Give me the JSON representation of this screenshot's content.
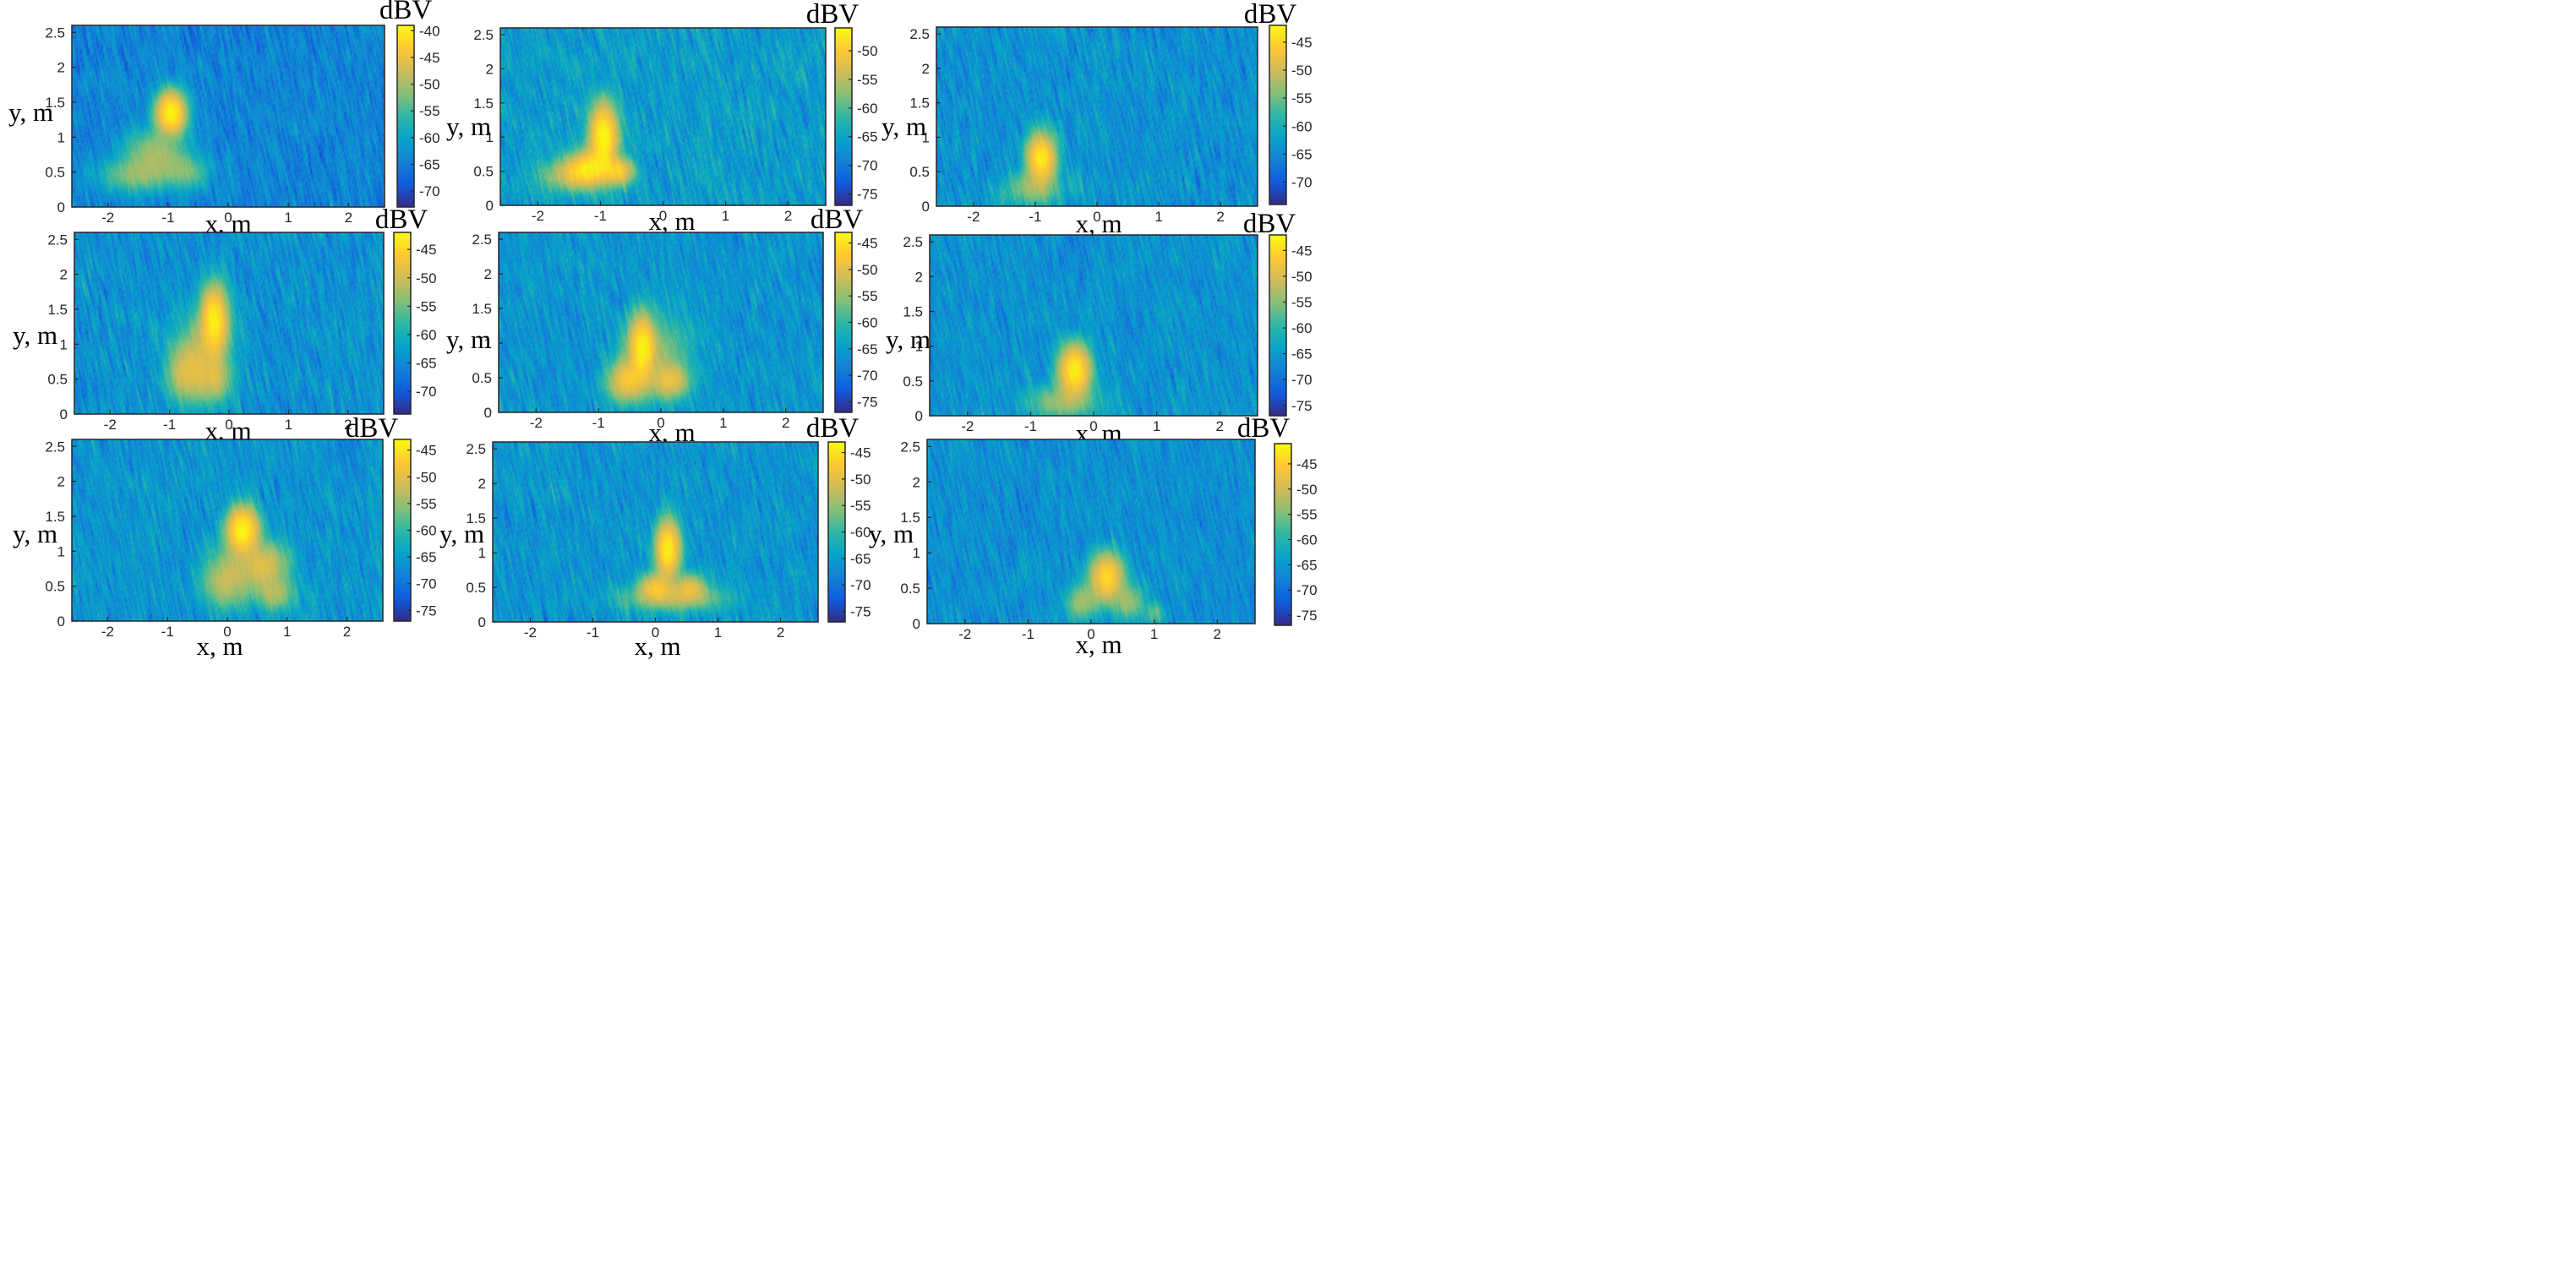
{
  "figure": {
    "background": "#ffffff",
    "colormap": "parula",
    "colormap_stops": [
      "#352a87",
      "#0f5cdd",
      "#1481d6",
      "#06a4ca",
      "#2eb7a4",
      "#87bf77",
      "#d1bb59",
      "#fec832",
      "#f9fb0e"
    ]
  },
  "chart_data": [
    {
      "type": "heatmap",
      "panel": "row1-col1",
      "xlabel": "x, m",
      "ylabel": "y, m",
      "colorbar_label": "dBV",
      "xlim": [
        -2.6,
        2.6
      ],
      "ylim": [
        0,
        2.6
      ],
      "xticks": [
        -2,
        -1,
        0,
        1,
        2
      ],
      "yticks": [
        0,
        0.5,
        1,
        1.5,
        2,
        2.5
      ],
      "clim": [
        -73,
        -39
      ],
      "cticks": [
        -40,
        -45,
        -50,
        -55,
        -60,
        -65,
        -70
      ],
      "background_level": -64,
      "hotspots": [
        {
          "x": -0.95,
          "y": 1.35,
          "sx": 0.15,
          "sy": 0.18,
          "peak": -40
        },
        {
          "x": -1.2,
          "y": 0.75,
          "sx": 0.3,
          "sy": 0.22,
          "peak": -52
        },
        {
          "x": -1.6,
          "y": 0.45,
          "sx": 0.35,
          "sy": 0.15,
          "peak": -55
        },
        {
          "x": -0.7,
          "y": 0.5,
          "sx": 0.25,
          "sy": 0.15,
          "peak": -56
        }
      ]
    },
    {
      "type": "heatmap",
      "panel": "row1-col2",
      "xlabel": "x, m",
      "ylabel": "y, m",
      "colorbar_label": "dBV",
      "xlim": [
        -2.6,
        2.6
      ],
      "ylim": [
        0,
        2.6
      ],
      "xticks": [
        -2,
        -1,
        0,
        1,
        2
      ],
      "yticks": [
        0,
        0.5,
        1,
        1.5,
        2,
        2.5
      ],
      "clim": [
        -77,
        -46
      ],
      "cticks": [
        -50,
        -55,
        -60,
        -65,
        -70,
        -75
      ],
      "background_level": -66,
      "hotspots": [
        {
          "x": -0.95,
          "y": 1.0,
          "sx": 0.14,
          "sy": 0.3,
          "peak": -47
        },
        {
          "x": -1.2,
          "y": 0.55,
          "sx": 0.2,
          "sy": 0.15,
          "peak": -51
        },
        {
          "x": -0.7,
          "y": 0.5,
          "sx": 0.15,
          "sy": 0.12,
          "peak": -52
        },
        {
          "x": -1.45,
          "y": 0.45,
          "sx": 0.3,
          "sy": 0.15,
          "peak": -56
        }
      ]
    },
    {
      "type": "heatmap",
      "panel": "row1-col3",
      "xlabel": "x, m",
      "ylabel": "y, m",
      "colorbar_label": "dBV",
      "xlim": [
        -2.6,
        2.6
      ],
      "ylim": [
        0,
        2.6
      ],
      "xticks": [
        -2,
        -1,
        0,
        1,
        2
      ],
      "yticks": [
        0,
        0.5,
        1,
        1.5,
        2,
        2.5
      ],
      "clim": [
        -74,
        -42
      ],
      "cticks": [
        -45,
        -50,
        -55,
        -60,
        -65,
        -70
      ],
      "background_level": -64,
      "hotspots": [
        {
          "x": -0.9,
          "y": 0.7,
          "sx": 0.14,
          "sy": 0.22,
          "peak": -44
        },
        {
          "x": -1.05,
          "y": 0.25,
          "sx": 0.3,
          "sy": 0.15,
          "peak": -57
        }
      ]
    },
    {
      "type": "heatmap",
      "panel": "row2-col1",
      "xlabel": "x, m",
      "ylabel": "y, m",
      "colorbar_label": "dBV",
      "xlim": [
        -2.6,
        2.6
      ],
      "ylim": [
        0,
        2.6
      ],
      "xticks": [
        -2,
        -1,
        0,
        1,
        2
      ],
      "yticks": [
        0,
        0.5,
        1,
        1.5,
        2,
        2.5
      ],
      "clim": [
        -74,
        -42
      ],
      "cticks": [
        -45,
        -50,
        -55,
        -60,
        -65,
        -70
      ],
      "background_level": -64,
      "hotspots": [
        {
          "x": -0.25,
          "y": 1.35,
          "sx": 0.14,
          "sy": 0.3,
          "peak": -44
        },
        {
          "x": -0.7,
          "y": 0.55,
          "sx": 0.2,
          "sy": 0.25,
          "peak": -52
        },
        {
          "x": -0.25,
          "y": 0.5,
          "sx": 0.18,
          "sy": 0.2,
          "peak": -53
        },
        {
          "x": -0.5,
          "y": 0.9,
          "sx": 0.3,
          "sy": 0.3,
          "peak": -56
        }
      ]
    },
    {
      "type": "heatmap",
      "panel": "row2-col2",
      "xlabel": "x, m",
      "ylabel": "y, m",
      "colorbar_label": "dBV",
      "xlim": [
        -2.6,
        2.6
      ],
      "ylim": [
        0,
        2.6
      ],
      "xticks": [
        -2,
        -1,
        0,
        1,
        2
      ],
      "yticks": [
        0,
        0.5,
        1,
        1.5,
        2,
        2.5
      ],
      "clim": [
        -77,
        -43
      ],
      "cticks": [
        -45,
        -50,
        -55,
        -60,
        -65,
        -70,
        -75
      ],
      "background_level": -66,
      "hotspots": [
        {
          "x": -0.3,
          "y": 0.95,
          "sx": 0.12,
          "sy": 0.28,
          "peak": -46
        },
        {
          "x": -0.55,
          "y": 0.45,
          "sx": 0.18,
          "sy": 0.18,
          "peak": -50
        },
        {
          "x": 0.15,
          "y": 0.45,
          "sx": 0.18,
          "sy": 0.15,
          "peak": -52
        },
        {
          "x": -0.1,
          "y": 0.8,
          "sx": 0.35,
          "sy": 0.35,
          "peak": -58
        }
      ]
    },
    {
      "type": "heatmap",
      "panel": "row2-col3",
      "xlabel": "x, m",
      "ylabel": "y, m",
      "colorbar_label": "dBV",
      "xlim": [
        -2.6,
        2.6
      ],
      "ylim": [
        0,
        2.6
      ],
      "xticks": [
        -2,
        -1,
        0,
        1,
        2
      ],
      "yticks": [
        0,
        0.5,
        1,
        1.5,
        2,
        2.5
      ],
      "clim": [
        -77,
        -42
      ],
      "cticks": [
        -45,
        -50,
        -55,
        -60,
        -65,
        -70,
        -75
      ],
      "background_level": -66,
      "hotspots": [
        {
          "x": -0.3,
          "y": 0.65,
          "sx": 0.15,
          "sy": 0.22,
          "peak": -44
        },
        {
          "x": -0.5,
          "y": 0.2,
          "sx": 0.35,
          "sy": 0.15,
          "peak": -57
        }
      ]
    },
    {
      "type": "heatmap",
      "panel": "row3-col1",
      "xlabel": "x, m",
      "ylabel": "y, m",
      "colorbar_label": "dBV",
      "xlim": [
        -2.6,
        2.6
      ],
      "ylim": [
        0,
        2.6
      ],
      "xticks": [
        -2,
        -1,
        0,
        1,
        2
      ],
      "yticks": [
        0,
        0.5,
        1,
        1.5,
        2,
        2.5
      ],
      "clim": [
        -77,
        -43
      ],
      "cticks": [
        -45,
        -50,
        -55,
        -60,
        -65,
        -70,
        -75
      ],
      "background_level": -66,
      "hotspots": [
        {
          "x": 0.25,
          "y": 1.3,
          "sx": 0.16,
          "sy": 0.2,
          "peak": -44
        },
        {
          "x": 0.6,
          "y": 0.8,
          "sx": 0.25,
          "sy": 0.2,
          "peak": -52
        },
        {
          "x": 0.0,
          "y": 0.6,
          "sx": 0.25,
          "sy": 0.25,
          "peak": -54
        },
        {
          "x": 0.8,
          "y": 0.4,
          "sx": 0.2,
          "sy": 0.15,
          "peak": -56
        }
      ]
    },
    {
      "type": "heatmap",
      "panel": "row3-col2",
      "xlabel": "x, m",
      "ylabel": "y, m",
      "colorbar_label": "dBV",
      "xlim": [
        -2.6,
        2.6
      ],
      "ylim": [
        0,
        2.6
      ],
      "xticks": [
        -2,
        -1,
        0,
        1,
        2
      ],
      "yticks": [
        0,
        0.5,
        1,
        1.5,
        2,
        2.5
      ],
      "clim": [
        -77,
        -43
      ],
      "cticks": [
        -45,
        -50,
        -55,
        -60,
        -65,
        -70,
        -75
      ],
      "background_level": -66,
      "hotspots": [
        {
          "x": 0.2,
          "y": 1.05,
          "sx": 0.12,
          "sy": 0.25,
          "peak": -45
        },
        {
          "x": 0.0,
          "y": 0.5,
          "sx": 0.15,
          "sy": 0.12,
          "peak": -50
        },
        {
          "x": 0.55,
          "y": 0.5,
          "sx": 0.15,
          "sy": 0.12,
          "peak": -52
        },
        {
          "x": 0.3,
          "y": 0.35,
          "sx": 0.5,
          "sy": 0.12,
          "peak": -56
        }
      ]
    },
    {
      "type": "heatmap",
      "panel": "row3-col3",
      "xlabel": "x, m",
      "ylabel": "y, m",
      "colorbar_label": "dBV",
      "xlim": [
        -2.6,
        2.6
      ],
      "ylim": [
        0,
        2.6
      ],
      "xticks": [
        -2,
        -1,
        0,
        1,
        2
      ],
      "yticks": [
        0,
        0.5,
        1,
        1.5,
        2,
        2.5
      ],
      "clim": [
        -77,
        -41
      ],
      "cticks": [
        -45,
        -50,
        -55,
        -60,
        -65,
        -70,
        -75
      ],
      "background_level": -66,
      "hotspots": [
        {
          "x": 0.25,
          "y": 0.65,
          "sx": 0.16,
          "sy": 0.2,
          "peak": -45
        },
        {
          "x": -0.15,
          "y": 0.3,
          "sx": 0.15,
          "sy": 0.15,
          "peak": -55
        },
        {
          "x": 0.6,
          "y": 0.3,
          "sx": 0.15,
          "sy": 0.15,
          "peak": -56
        },
        {
          "x": 1.0,
          "y": 0.15,
          "sx": 0.1,
          "sy": 0.1,
          "peak": -60
        }
      ]
    }
  ]
}
